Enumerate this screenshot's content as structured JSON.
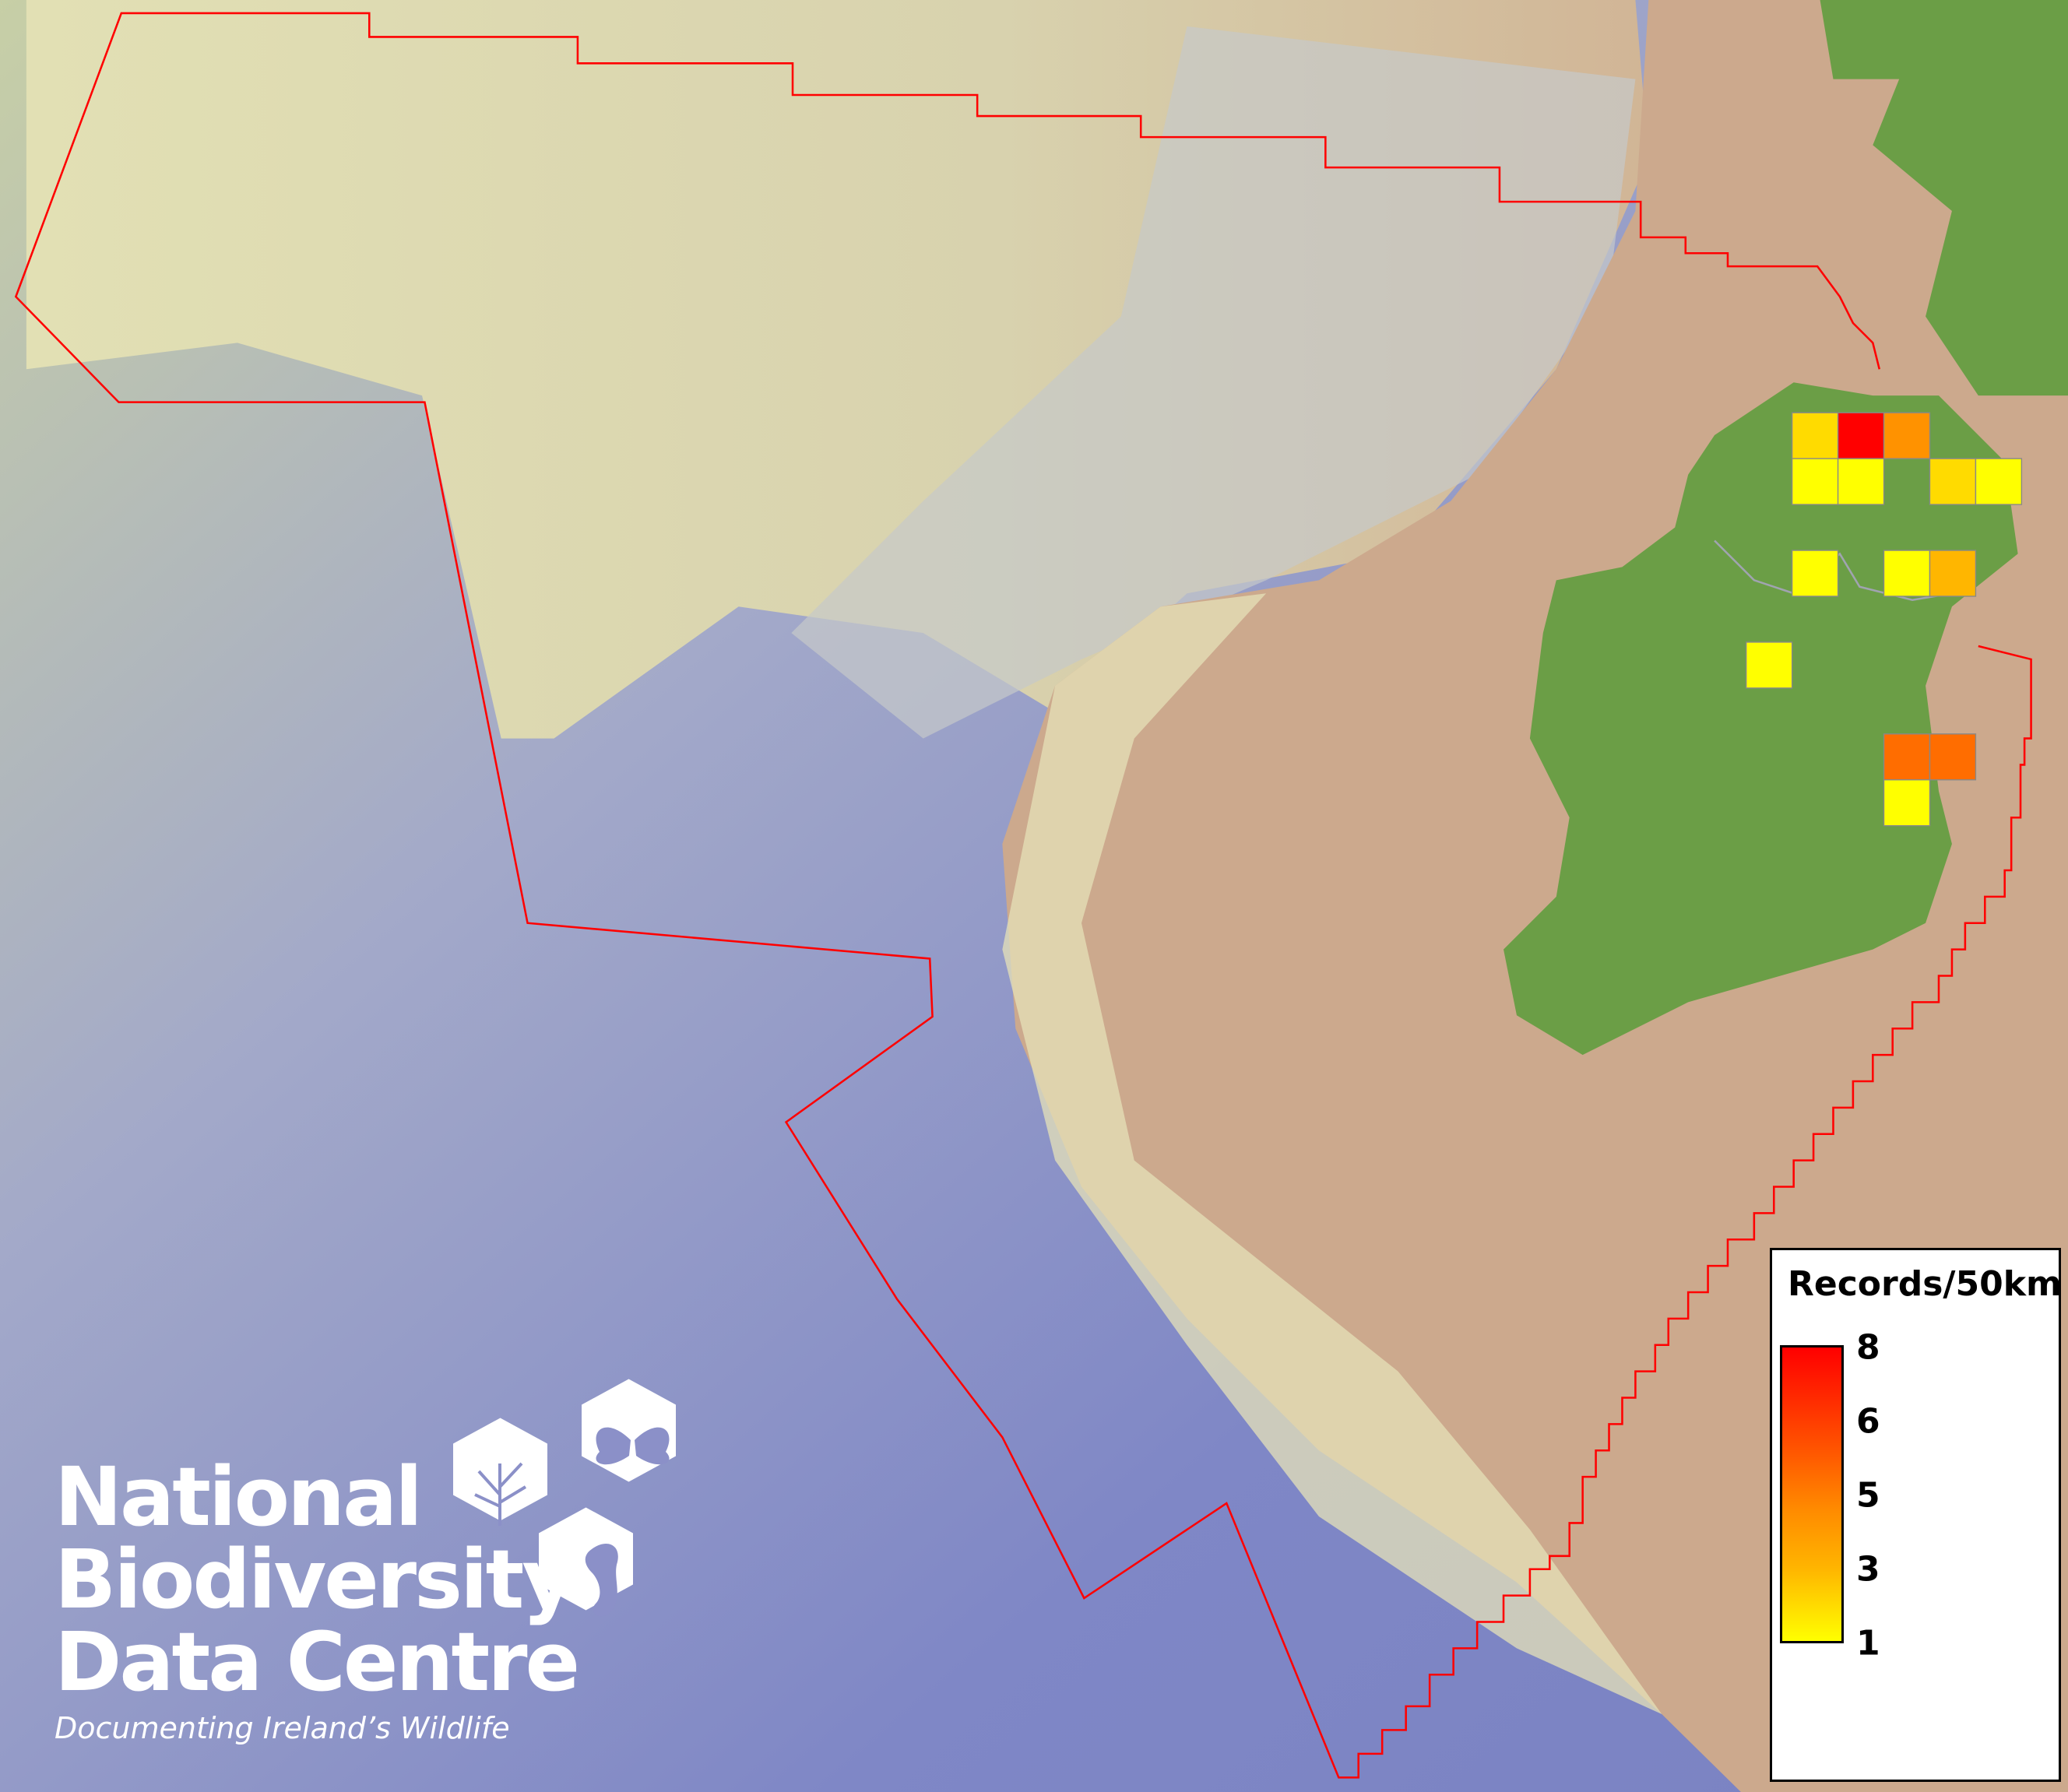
{
  "map": {
    "colors": {
      "ocean_deep": "#7f86c4",
      "shelf_light": "#dcdcb4",
      "land_tan": "#cba88c",
      "ireland": "#6b9e46",
      "boundary": "#ff0000"
    },
    "grid_cells": [
      {
        "row": 0,
        "col": 1,
        "value": 2
      },
      {
        "row": 0,
        "col": 2,
        "value": 8
      },
      {
        "row": 0,
        "col": 3,
        "value": 4
      },
      {
        "row": 1,
        "col": 1,
        "value": 1
      },
      {
        "row": 1,
        "col": 2,
        "value": 1
      },
      {
        "row": 1,
        "col": 4,
        "value": 2
      },
      {
        "row": 1,
        "col": 5,
        "value": 1
      },
      {
        "row": 3,
        "col": 1,
        "value": 1
      },
      {
        "row": 3,
        "col": 3,
        "value": 1
      },
      {
        "row": 3,
        "col": 4,
        "value": 3
      },
      {
        "row": 5,
        "col": 0,
        "value": 1
      },
      {
        "row": 7,
        "col": 3,
        "value": 5
      },
      {
        "row": 7,
        "col": 4,
        "value": 5
      },
      {
        "row": 8,
        "col": 3,
        "value": 1
      }
    ]
  },
  "legend": {
    "title": "Records/50km",
    "ticks": [
      "8",
      "6",
      "5",
      "3",
      "1"
    ],
    "min_color": "#ffff00",
    "max_color": "#ff0000"
  },
  "logo": {
    "line1": "National",
    "line2": "Biodiversity",
    "line3": "Data Centre",
    "tagline": "Documenting Ireland’s Wildlife",
    "icons": [
      "tree-icon",
      "butterfly-icon",
      "seahorse-icon"
    ]
  }
}
